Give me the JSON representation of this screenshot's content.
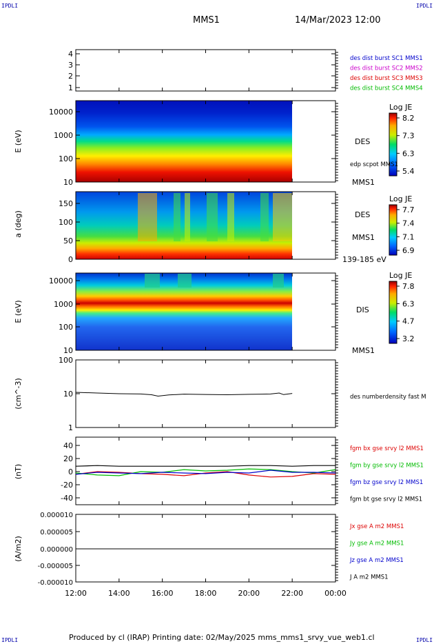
{
  "corner_labels": [
    "IPDLI",
    "IPDLI",
    "IPDLI",
    "IPDLI"
  ],
  "header": {
    "spacecraft": "MMS1",
    "datetime": "14/Mar/2023 12:00"
  },
  "footer": "Produced by cl (IRAP)   Printing date: 02/May/2025   mms_mms1_srvy_vue_web1.cl",
  "colors": {
    "sc1": "#0000cc",
    "sc2": "#cc00cc",
    "sc3": "#dd0000",
    "sc4": "#00bb00",
    "bx": "#dd0000",
    "by": "#00bb00",
    "bz": "#0000cc",
    "bt": "#000000"
  },
  "chart_data": [
    {
      "type": "scatter",
      "panel": "spacecraft-location",
      "y_ticks": [
        "4",
        "3",
        "2",
        "1"
      ],
      "legend": [
        {
          "label": "des dist burst SC1 MMS1",
          "color": "#0000cc"
        },
        {
          "label": "des dist burst SC2 MMS2",
          "color": "#cc00cc"
        },
        {
          "label": "des dist burst SC3 MMS3",
          "color": "#dd0000"
        },
        {
          "label": "des dist burst SC4 MMS4",
          "color": "#00bb00"
        }
      ]
    },
    {
      "type": "heatmap",
      "panel": "des-energy",
      "ylabel": "E (eV)",
      "y_ticks": [
        "10000",
        "1000",
        "100",
        "10"
      ],
      "side_labels": [
        "DES",
        "edp scpot MMS1",
        "MMS1"
      ],
      "colorbar": {
        "title": "Log JE",
        "ticks": [
          "8.2",
          "7.3",
          "6.3",
          "5.4"
        ]
      }
    },
    {
      "type": "heatmap",
      "panel": "des-pitch-angle",
      "ylabel": "a (deg)",
      "y_ticks": [
        "150",
        "100",
        "50",
        "0"
      ],
      "side_labels": [
        "DES",
        "MMS1",
        "139-185 eV"
      ],
      "colorbar": {
        "title": "Log JE",
        "ticks": [
          "7.7",
          "7.4",
          "7.1",
          "6.9"
        ]
      }
    },
    {
      "type": "heatmap",
      "panel": "dis-energy",
      "ylabel": "E (eV)",
      "y_ticks": [
        "10000",
        "1000",
        "100",
        "10"
      ],
      "side_labels": [
        "DIS",
        "MMS1"
      ],
      "colorbar": {
        "title": "Log JE",
        "ticks": [
          "7.8",
          "6.3",
          "4.7",
          "3.2"
        ]
      }
    },
    {
      "type": "line",
      "panel": "density",
      "ylabel": "(cm^-3)",
      "y_ticks": [
        "100",
        "10",
        "1"
      ],
      "legend": [
        {
          "label": "des numberdensity fast M",
          "color": "#000000"
        }
      ],
      "series": [
        {
          "name": "des numberdensity fast M",
          "x": [
            12.0,
            13.0,
            14.0,
            15.0,
            15.5,
            15.8,
            16.3,
            17.0,
            18.0,
            19.0,
            20.0,
            21.0,
            21.4,
            21.6,
            22.0
          ],
          "y": [
            11.0,
            10.5,
            10.0,
            9.8,
            9.3,
            8.5,
            9.2,
            9.7,
            9.5,
            9.3,
            9.6,
            9.8,
            10.5,
            9.4,
            10.2
          ]
        }
      ]
    },
    {
      "type": "line",
      "panel": "magnetic-field",
      "ylabel": "(nT)",
      "y_ticks": [
        "40",
        "20",
        "0",
        "-20",
        "-40"
      ],
      "ylim": [
        -50,
        50
      ],
      "legend": [
        {
          "label": "fgm bx gse srvy l2 MMS1",
          "color": "#dd0000"
        },
        {
          "label": "fgm by gse srvy l2 MMS1",
          "color": "#00bb00"
        },
        {
          "label": "fgm bz gse srvy l2 MMS1",
          "color": "#0000cc"
        },
        {
          "label": "fgm bt gse srvy l2 MMS1",
          "color": "#000000"
        }
      ],
      "series": [
        {
          "name": "fgm bx gse srvy l2 MMS1",
          "x": [
            12,
            13,
            14,
            15,
            16,
            17,
            18,
            19,
            20,
            21,
            22,
            23,
            24
          ],
          "y": [
            -4,
            0,
            -1,
            -3,
            -4,
            -6,
            -2,
            0,
            -5,
            -8,
            -7,
            -3,
            -4
          ]
        },
        {
          "name": "fgm by gse srvy l2 MMS1",
          "x": [
            12,
            13,
            14,
            15,
            16,
            17,
            18,
            19,
            20,
            21,
            22,
            23,
            24
          ],
          "y": [
            -2,
            -5,
            -6,
            0,
            -1,
            3,
            1,
            2,
            4,
            3,
            0,
            -2,
            3
          ]
        },
        {
          "name": "fgm bz gse srvy l2 MMS1",
          "x": [
            12,
            13,
            14,
            15,
            16,
            17,
            18,
            19,
            20,
            21,
            22,
            23,
            24
          ],
          "y": [
            -4,
            -1,
            -2,
            -3,
            -1,
            -2,
            -3,
            -1,
            -2,
            2,
            -1,
            -1,
            -2
          ]
        },
        {
          "name": "fgm bt gse srvy l2 MMS1",
          "x": [
            12,
            13,
            14,
            15,
            16,
            17,
            18,
            19,
            20,
            21,
            22,
            23,
            24
          ],
          "y": [
            8,
            9,
            8,
            8,
            8,
            8,
            8,
            8,
            9,
            9,
            8,
            9,
            9
          ]
        }
      ]
    },
    {
      "type": "line",
      "panel": "current-density",
      "ylabel": "(A/m2)",
      "y_ticks": [
        "0.000010",
        "0.000005",
        "0.000000",
        "-0.000005",
        "-0.000010"
      ],
      "ylim": [
        -1e-05,
        1e-05
      ],
      "legend": [
        {
          "label": "Jx gse A m2 MMS1",
          "color": "#dd0000"
        },
        {
          "label": "Jy gse A m2 MMS1",
          "color": "#00bb00"
        },
        {
          "label": "Jz gse A m2 MMS1",
          "color": "#0000cc"
        },
        {
          "label": "J A m2 MMS1",
          "color": "#000000"
        }
      ],
      "series": [
        {
          "name": "J A m2 MMS1",
          "x": [
            12,
            24
          ],
          "y": [
            0,
            0
          ]
        }
      ]
    }
  ],
  "x_ticks": [
    "12:00",
    "14:00",
    "16:00",
    "18:00",
    "20:00",
    "22:00",
    "00:00"
  ]
}
